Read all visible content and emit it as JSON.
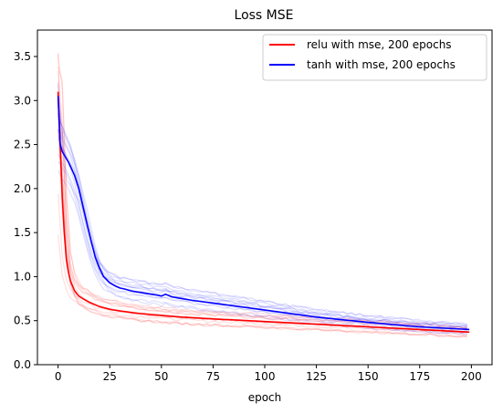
{
  "chart_data": {
    "type": "line",
    "title": "Loss MSE",
    "xlabel": "epoch",
    "ylabel": "",
    "xlim": [
      -10,
      210
    ],
    "ylim": [
      0,
      3.8
    ],
    "xticks": [
      0,
      25,
      50,
      75,
      100,
      125,
      150,
      175,
      200
    ],
    "yticks": [
      0.0,
      0.5,
      1.0,
      1.5,
      2.0,
      2.5,
      3.0,
      3.5
    ],
    "xtick_labels": [
      "0",
      "25",
      "50",
      "75",
      "100",
      "125",
      "150",
      "175",
      "200"
    ],
    "ytick_labels": [
      "0.0",
      "0.5",
      "1.0",
      "1.5",
      "2.0",
      "2.5",
      "3.0",
      "3.5"
    ],
    "grid": false,
    "legend_position": "top-right",
    "colors": {
      "relu": "#ff0000",
      "tanh": "#0000ff"
    },
    "series": [
      {
        "name": "relu with mse, 200 epochs",
        "color": "#ff0000",
        "x": [
          0,
          1,
          2,
          3,
          4,
          5,
          6,
          8,
          10,
          12,
          15,
          20,
          25,
          30,
          40,
          50,
          60,
          75,
          100,
          125,
          150,
          175,
          199
        ],
        "values": [
          3.1,
          2.5,
          1.9,
          1.5,
          1.2,
          1.05,
          0.95,
          0.84,
          0.78,
          0.75,
          0.71,
          0.66,
          0.63,
          0.61,
          0.58,
          0.56,
          0.54,
          0.52,
          0.49,
          0.46,
          0.43,
          0.4,
          0.37
        ]
      },
      {
        "name": "tanh with mse, 200 epochs",
        "color": "#0000ff",
        "x": [
          0,
          1,
          2,
          3,
          5,
          8,
          10,
          12,
          14,
          16,
          18,
          20,
          22,
          25,
          28,
          30,
          32,
          35,
          37,
          40,
          45,
          48,
          50,
          52,
          55,
          60,
          65,
          75,
          100,
          125,
          150,
          175,
          199
        ],
        "values": [
          3.05,
          2.5,
          2.42,
          2.38,
          2.3,
          2.15,
          2.0,
          1.8,
          1.6,
          1.4,
          1.22,
          1.1,
          1.0,
          0.93,
          0.89,
          0.87,
          0.86,
          0.84,
          0.83,
          0.82,
          0.8,
          0.79,
          0.78,
          0.8,
          0.77,
          0.75,
          0.73,
          0.7,
          0.62,
          0.54,
          0.48,
          0.43,
          0.4
        ]
      }
    ]
  }
}
